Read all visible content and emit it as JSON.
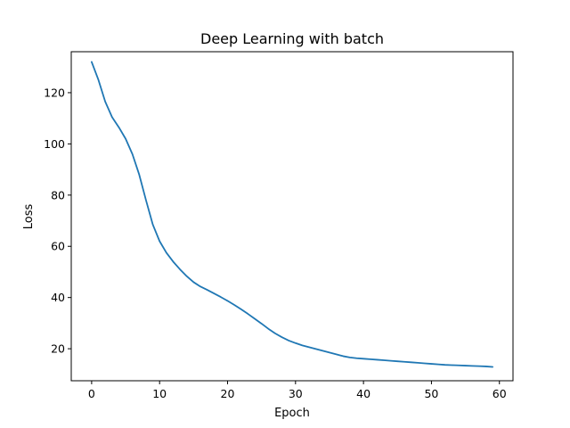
{
  "chart_data": {
    "type": "line",
    "title": "Deep Learning with batch",
    "xlabel": "Epoch",
    "ylabel": "Loss",
    "xlim": [
      -3,
      62
    ],
    "ylim": [
      7.5,
      136
    ],
    "xticks": [
      0,
      10,
      20,
      30,
      40,
      50,
      60
    ],
    "yticks": [
      20,
      40,
      60,
      80,
      100,
      120
    ],
    "grid": false,
    "series": [
      {
        "color": "#1f77b4",
        "x": [
          0,
          1,
          2,
          3,
          4,
          5,
          6,
          7,
          8,
          9,
          10,
          11,
          12,
          13,
          14,
          15,
          16,
          17,
          18,
          19,
          20,
          21,
          22,
          23,
          24,
          25,
          26,
          27,
          28,
          29,
          30,
          31,
          32,
          33,
          34,
          35,
          36,
          37,
          38,
          39,
          40,
          41,
          42,
          43,
          44,
          45,
          46,
          47,
          48,
          49,
          50,
          51,
          52,
          53,
          54,
          55,
          56,
          57,
          58,
          59
        ],
        "y": [
          132,
          125,
          116.5,
          110.5,
          106.5,
          102,
          96,
          88,
          78,
          68.5,
          62,
          57.5,
          54,
          51,
          48.3,
          46,
          44.3,
          43,
          41.6,
          40.2,
          38.7,
          37.1,
          35.4,
          33.6,
          31.7,
          29.8,
          27.8,
          26,
          24.5,
          23.2,
          22.2,
          21.3,
          20.6,
          19.9,
          19.2,
          18.5,
          17.8,
          17.1,
          16.6,
          16.3,
          16.1,
          15.9,
          15.7,
          15.5,
          15.3,
          15.1,
          14.9,
          14.7,
          14.5,
          14.3,
          14.1,
          13.9,
          13.7,
          13.6,
          13.5,
          13.4,
          13.3,
          13.2,
          13.1,
          12.9
        ]
      }
    ]
  }
}
